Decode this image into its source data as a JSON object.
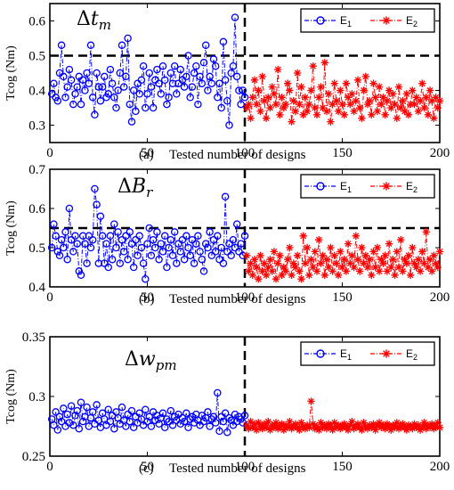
{
  "colors": {
    "E1": "#0000ff",
    "E2": "#ff0000"
  },
  "chart_data": [
    {
      "type": "line",
      "title": "Δt_m",
      "title_main": "Δt",
      "title_sub": "m",
      "panel_label": "(a)",
      "xlabel": "Tested number of designs",
      "ylabel": "Tcog (Nm)",
      "xlim": [
        0,
        200
      ],
      "ylim": [
        0.25,
        0.65
      ],
      "xticks": [
        "0",
        "50",
        "100",
        "150",
        "200"
      ],
      "yticks": [
        "0.3",
        "0.4",
        "0.5",
        "0.6"
      ],
      "ytick_values": [
        0.3,
        0.4,
        0.5,
        0.6
      ],
      "threshold": 0.5,
      "divider_x": 100,
      "legend": {
        "placement": "top-right",
        "entries": [
          "E1",
          "E2"
        ]
      },
      "series": [
        {
          "name": "E1",
          "x_start": 1,
          "values": [
            0.39,
            0.42,
            0.38,
            0.37,
            0.45,
            0.53,
            0.44,
            0.38,
            0.41,
            0.46,
            0.43,
            0.36,
            0.39,
            0.41,
            0.44,
            0.36,
            0.43,
            0.4,
            0.45,
            0.42,
            0.53,
            0.38,
            0.33,
            0.45,
            0.41,
            0.37,
            0.41,
            0.44,
            0.38,
            0.39,
            0.46,
            0.42,
            0.38,
            0.35,
            0.4,
            0.45,
            0.53,
            0.41,
            0.44,
            0.55,
            0.36,
            0.31,
            0.4,
            0.34,
            0.42,
            0.39,
            0.43,
            0.47,
            0.35,
            0.39,
            0.45,
            0.41,
            0.35,
            0.43,
            0.46,
            0.42,
            0.39,
            0.47,
            0.43,
            0.36,
            0.38,
            0.45,
            0.42,
            0.47,
            0.39,
            0.42,
            0.46,
            0.43,
            0.41,
            0.44,
            0.5,
            0.38,
            0.41,
            0.45,
            0.47,
            0.36,
            0.44,
            0.42,
            0.48,
            0.53,
            0.4,
            0.44,
            0.42,
            0.49,
            0.47,
            0.38,
            0.42,
            0.35,
            0.54,
            0.43,
            0.37,
            0.3,
            0.45,
            0.47,
            0.61,
            0.44,
            0.4,
            0.36,
            0.4,
            0.38
          ]
        },
        {
          "name": "E2",
          "x_start": 101,
          "values": [
            0.35,
            0.36,
            0.32,
            0.38,
            0.43,
            0.36,
            0.4,
            0.34,
            0.44,
            0.37,
            0.32,
            0.38,
            0.35,
            0.41,
            0.39,
            0.36,
            0.46,
            0.33,
            0.38,
            0.35,
            0.36,
            0.42,
            0.4,
            0.31,
            0.37,
            0.34,
            0.45,
            0.36,
            0.41,
            0.33,
            0.38,
            0.34,
            0.36,
            0.4,
            0.47,
            0.35,
            0.33,
            0.38,
            0.41,
            0.35,
            0.48,
            0.34,
            0.39,
            0.31,
            0.36,
            0.42,
            0.37,
            0.34,
            0.4,
            0.36,
            0.33,
            0.42,
            0.38,
            0.36,
            0.39,
            0.34,
            0.37,
            0.43,
            0.35,
            0.32,
            0.4,
            0.44,
            0.36,
            0.37,
            0.33,
            0.42,
            0.38,
            0.34,
            0.41,
            0.36,
            0.38,
            0.33,
            0.37,
            0.4,
            0.35,
            0.39,
            0.36,
            0.32,
            0.41,
            0.35,
            0.37,
            0.34,
            0.39,
            0.33,
            0.36,
            0.4,
            0.36,
            0.38,
            0.34,
            0.37,
            0.42,
            0.35,
            0.38,
            0.33,
            0.4,
            0.37,
            0.32,
            0.38,
            0.35,
            0.37
          ]
        }
      ]
    },
    {
      "type": "line",
      "title": "ΔB_r",
      "title_main": "ΔB",
      "title_sub": "r",
      "panel_label": "(b)",
      "xlabel": "Tested number of designs",
      "ylabel": "Tcog (Nm)",
      "xlim": [
        0,
        200
      ],
      "ylim": [
        0.4,
        0.7
      ],
      "xticks": [
        "0",
        "50",
        "100",
        "150",
        "200"
      ],
      "yticks": [
        "0.4",
        "0.5",
        "0.6",
        "0.7"
      ],
      "ytick_values": [
        0.4,
        0.5,
        0.6,
        0.7
      ],
      "threshold": 0.55,
      "divider_x": 100,
      "legend": {
        "placement": "top-right",
        "entries": [
          "E1",
          "E2"
        ]
      },
      "series": [
        {
          "name": "E1",
          "x_start": 1,
          "values": [
            0.5,
            0.56,
            0.53,
            0.49,
            0.48,
            0.52,
            0.5,
            0.54,
            0.47,
            0.6,
            0.52,
            0.49,
            0.53,
            0.51,
            0.44,
            0.43,
            0.53,
            0.51,
            0.46,
            0.53,
            0.5,
            0.52,
            0.65,
            0.61,
            0.46,
            0.58,
            0.53,
            0.46,
            0.51,
            0.45,
            0.53,
            0.47,
            0.56,
            0.5,
            0.54,
            0.46,
            0.52,
            0.49,
            0.53,
            0.47,
            0.54,
            0.51,
            0.45,
            0.52,
            0.48,
            0.53,
            0.5,
            0.46,
            0.42,
            0.51,
            0.55,
            0.48,
            0.52,
            0.5,
            0.54,
            0.47,
            0.51,
            0.49,
            0.53,
            0.45,
            0.5,
            0.52,
            0.48,
            0.54,
            0.46,
            0.51,
            0.49,
            0.52,
            0.47,
            0.53,
            0.5,
            0.48,
            0.52,
            0.46,
            0.51,
            0.53,
            0.49,
            0.47,
            0.44,
            0.51,
            0.5,
            0.54,
            0.48,
            0.52,
            0.49,
            0.53,
            0.47,
            0.5,
            0.46,
            0.63,
            0.49,
            0.51,
            0.48,
            0.52,
            0.5,
            0.56,
            0.49,
            0.51,
            0.48,
            0.53
          ]
        },
        {
          "name": "E2",
          "x_start": 101,
          "values": [
            0.48,
            0.44,
            0.46,
            0.43,
            0.47,
            0.45,
            0.42,
            0.48,
            0.44,
            0.46,
            0.43,
            0.45,
            0.47,
            0.44,
            0.49,
            0.42,
            0.46,
            0.48,
            0.43,
            0.45,
            0.44,
            0.47,
            0.5,
            0.43,
            0.46,
            0.45,
            0.48,
            0.44,
            0.42,
            0.53,
            0.46,
            0.5,
            0.43,
            0.47,
            0.45,
            0.49,
            0.44,
            0.52,
            0.46,
            0.48,
            0.43,
            0.47,
            0.45,
            0.5,
            0.44,
            0.48,
            0.46,
            0.43,
            0.49,
            0.45,
            0.47,
            0.44,
            0.51,
            0.46,
            0.48,
            0.45,
            0.53,
            0.47,
            0.44,
            0.5,
            0.46,
            0.48,
            0.45,
            0.47,
            0.43,
            0.49,
            0.45,
            0.5,
            0.44,
            0.47,
            0.46,
            0.48,
            0.44,
            0.51,
            0.45,
            0.47,
            0.43,
            0.49,
            0.45,
            0.52,
            0.44,
            0.47,
            0.46,
            0.48,
            0.43,
            0.5,
            0.46,
            0.45,
            0.47,
            0.44,
            0.49,
            0.46,
            0.54,
            0.45,
            0.47,
            0.44,
            0.48,
            0.46,
            0.45,
            0.49
          ]
        }
      ]
    },
    {
      "type": "line",
      "title": "Δw_pm",
      "title_main": "Δw",
      "title_sub": "pm",
      "panel_label": "(c)",
      "xlabel": "Tested number of designs",
      "ylabel": "Tcog (Nm)",
      "xlim": [
        0,
        200
      ],
      "ylim": [
        0.25,
        0.35
      ],
      "xticks": [
        "0",
        "50",
        "100",
        "150",
        "200"
      ],
      "yticks": [
        "0.25",
        "0.3",
        "0.35"
      ],
      "ytick_values": [
        0.25,
        0.3,
        0.35
      ],
      "threshold": null,
      "divider_x": 100,
      "legend": {
        "placement": "top-right",
        "entries": [
          "E1",
          "E2"
        ]
      },
      "series": [
        {
          "name": "E1",
          "x_start": 1,
          "values": [
            0.281,
            0.276,
            0.287,
            0.272,
            0.283,
            0.279,
            0.29,
            0.275,
            0.285,
            0.278,
            0.292,
            0.276,
            0.284,
            0.288,
            0.273,
            0.295,
            0.279,
            0.283,
            0.291,
            0.275,
            0.282,
            0.287,
            0.277,
            0.293,
            0.28,
            0.274,
            0.286,
            0.281,
            0.276,
            0.289,
            0.279,
            0.284,
            0.273,
            0.287,
            0.282,
            0.277,
            0.291,
            0.28,
            0.275,
            0.285,
            0.279,
            0.288,
            0.274,
            0.283,
            0.278,
            0.286,
            0.281,
            0.276,
            0.289,
            0.279,
            0.283,
            0.275,
            0.287,
            0.28,
            0.284,
            0.277,
            0.282,
            0.286,
            0.274,
            0.281,
            0.279,
            0.288,
            0.276,
            0.283,
            0.28,
            0.285,
            0.277,
            0.282,
            0.279,
            0.286,
            0.274,
            0.281,
            0.283,
            0.278,
            0.285,
            0.28,
            0.276,
            0.284,
            0.279,
            0.282,
            0.287,
            0.275,
            0.281,
            0.283,
            0.278,
            0.303,
            0.271,
            0.283,
            0.279,
            0.286,
            0.27,
            0.282,
            0.28,
            0.276,
            0.285,
            0.279,
            0.283,
            0.281,
            0.278,
            0.284
          ]
        },
        {
          "name": "E2",
          "x_start": 101,
          "values": [
            0.276,
            0.273,
            0.279,
            0.274,
            0.277,
            0.272,
            0.278,
            0.275,
            0.273,
            0.277,
            0.274,
            0.279,
            0.272,
            0.276,
            0.274,
            0.278,
            0.273,
            0.275,
            0.277,
            0.272,
            0.276,
            0.274,
            0.279,
            0.273,
            0.275,
            0.277,
            0.274,
            0.272,
            0.278,
            0.275,
            0.273,
            0.276,
            0.274,
            0.296,
            0.277,
            0.273,
            0.275,
            0.272,
            0.278,
            0.274,
            0.276,
            0.273,
            0.277,
            0.275,
            0.272,
            0.278,
            0.274,
            0.276,
            0.273,
            0.275,
            0.277,
            0.274,
            0.272,
            0.276,
            0.279,
            0.273,
            0.275,
            0.277,
            0.274,
            0.272,
            0.278,
            0.275,
            0.273,
            0.276,
            0.274,
            0.277,
            0.272,
            0.275,
            0.278,
            0.274,
            0.276,
            0.273,
            0.277,
            0.275,
            0.272,
            0.276,
            0.274,
            0.278,
            0.273,
            0.275,
            0.277,
            0.274,
            0.272,
            0.276,
            0.275,
            0.273,
            0.277,
            0.274,
            0.276,
            0.272,
            0.275,
            0.278,
            0.273,
            0.276,
            0.274,
            0.277,
            0.273,
            0.275,
            0.278,
            0.274
          ]
        }
      ]
    }
  ]
}
